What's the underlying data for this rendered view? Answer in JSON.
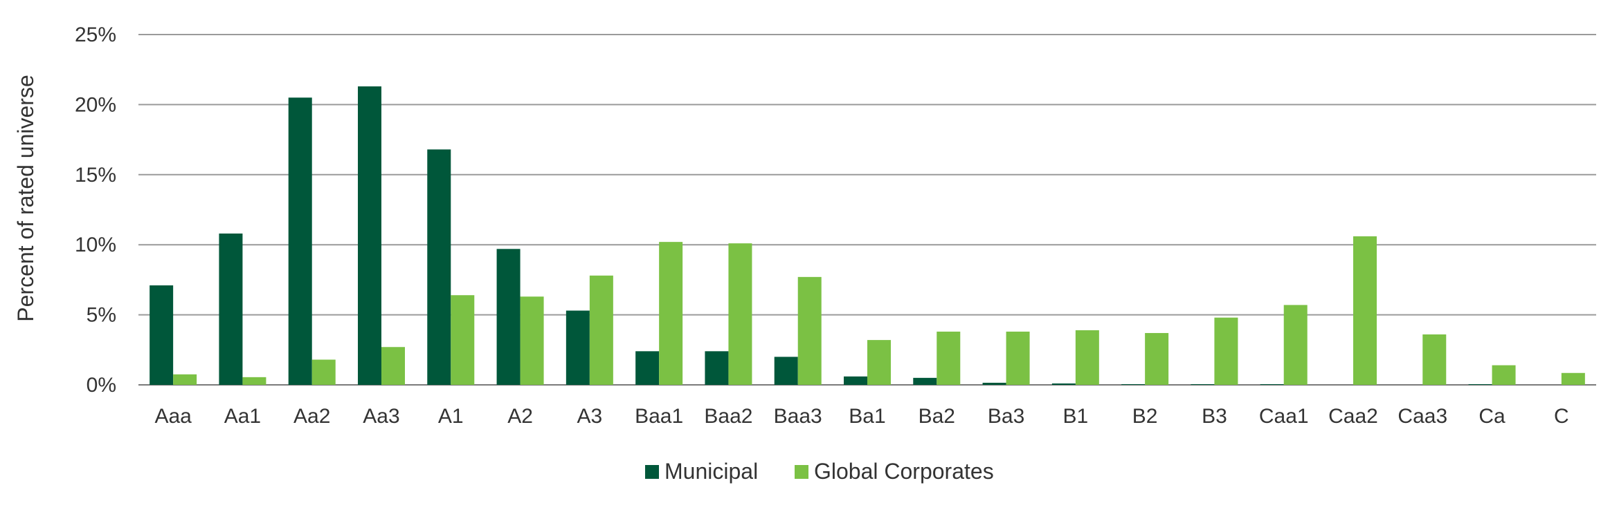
{
  "chart_data": {
    "type": "bar",
    "title": "",
    "xlabel": "",
    "ylabel": "Percent of rated universe",
    "ylim": [
      0,
      25
    ],
    "yticks": [
      0,
      5,
      10,
      15,
      20,
      25
    ],
    "ytick_labels": [
      "0%",
      "5%",
      "10%",
      "15%",
      "20%",
      "25%"
    ],
    "grid": true,
    "legend_position": "bottom-center",
    "categories": [
      "Aaa",
      "Aa1",
      "Aa2",
      "Aa3",
      "A1",
      "A2",
      "A3",
      "Baa1",
      "Baa2",
      "Baa3",
      "Ba1",
      "Ba2",
      "Ba3",
      "B1",
      "B2",
      "B3",
      "Caa1",
      "Caa2",
      "Caa3",
      "Ca",
      "C"
    ],
    "series": [
      {
        "name": "Municipal",
        "color": "#00573a",
        "values": [
          7.1,
          10.8,
          20.5,
          21.3,
          16.8,
          9.7,
          5.3,
          2.4,
          2.4,
          2.0,
          0.6,
          0.5,
          0.15,
          0.1,
          0.05,
          0.05,
          0.05,
          0.0,
          0.0,
          0.05,
          0.0
        ]
      },
      {
        "name": "Global Corporates",
        "color": "#7bc144",
        "values": [
          0.75,
          0.55,
          1.8,
          2.7,
          6.4,
          6.3,
          7.8,
          10.2,
          10.1,
          7.7,
          3.2,
          3.8,
          3.8,
          3.9,
          3.7,
          4.8,
          5.7,
          10.6,
          3.6,
          1.4,
          0.85
        ]
      }
    ]
  }
}
